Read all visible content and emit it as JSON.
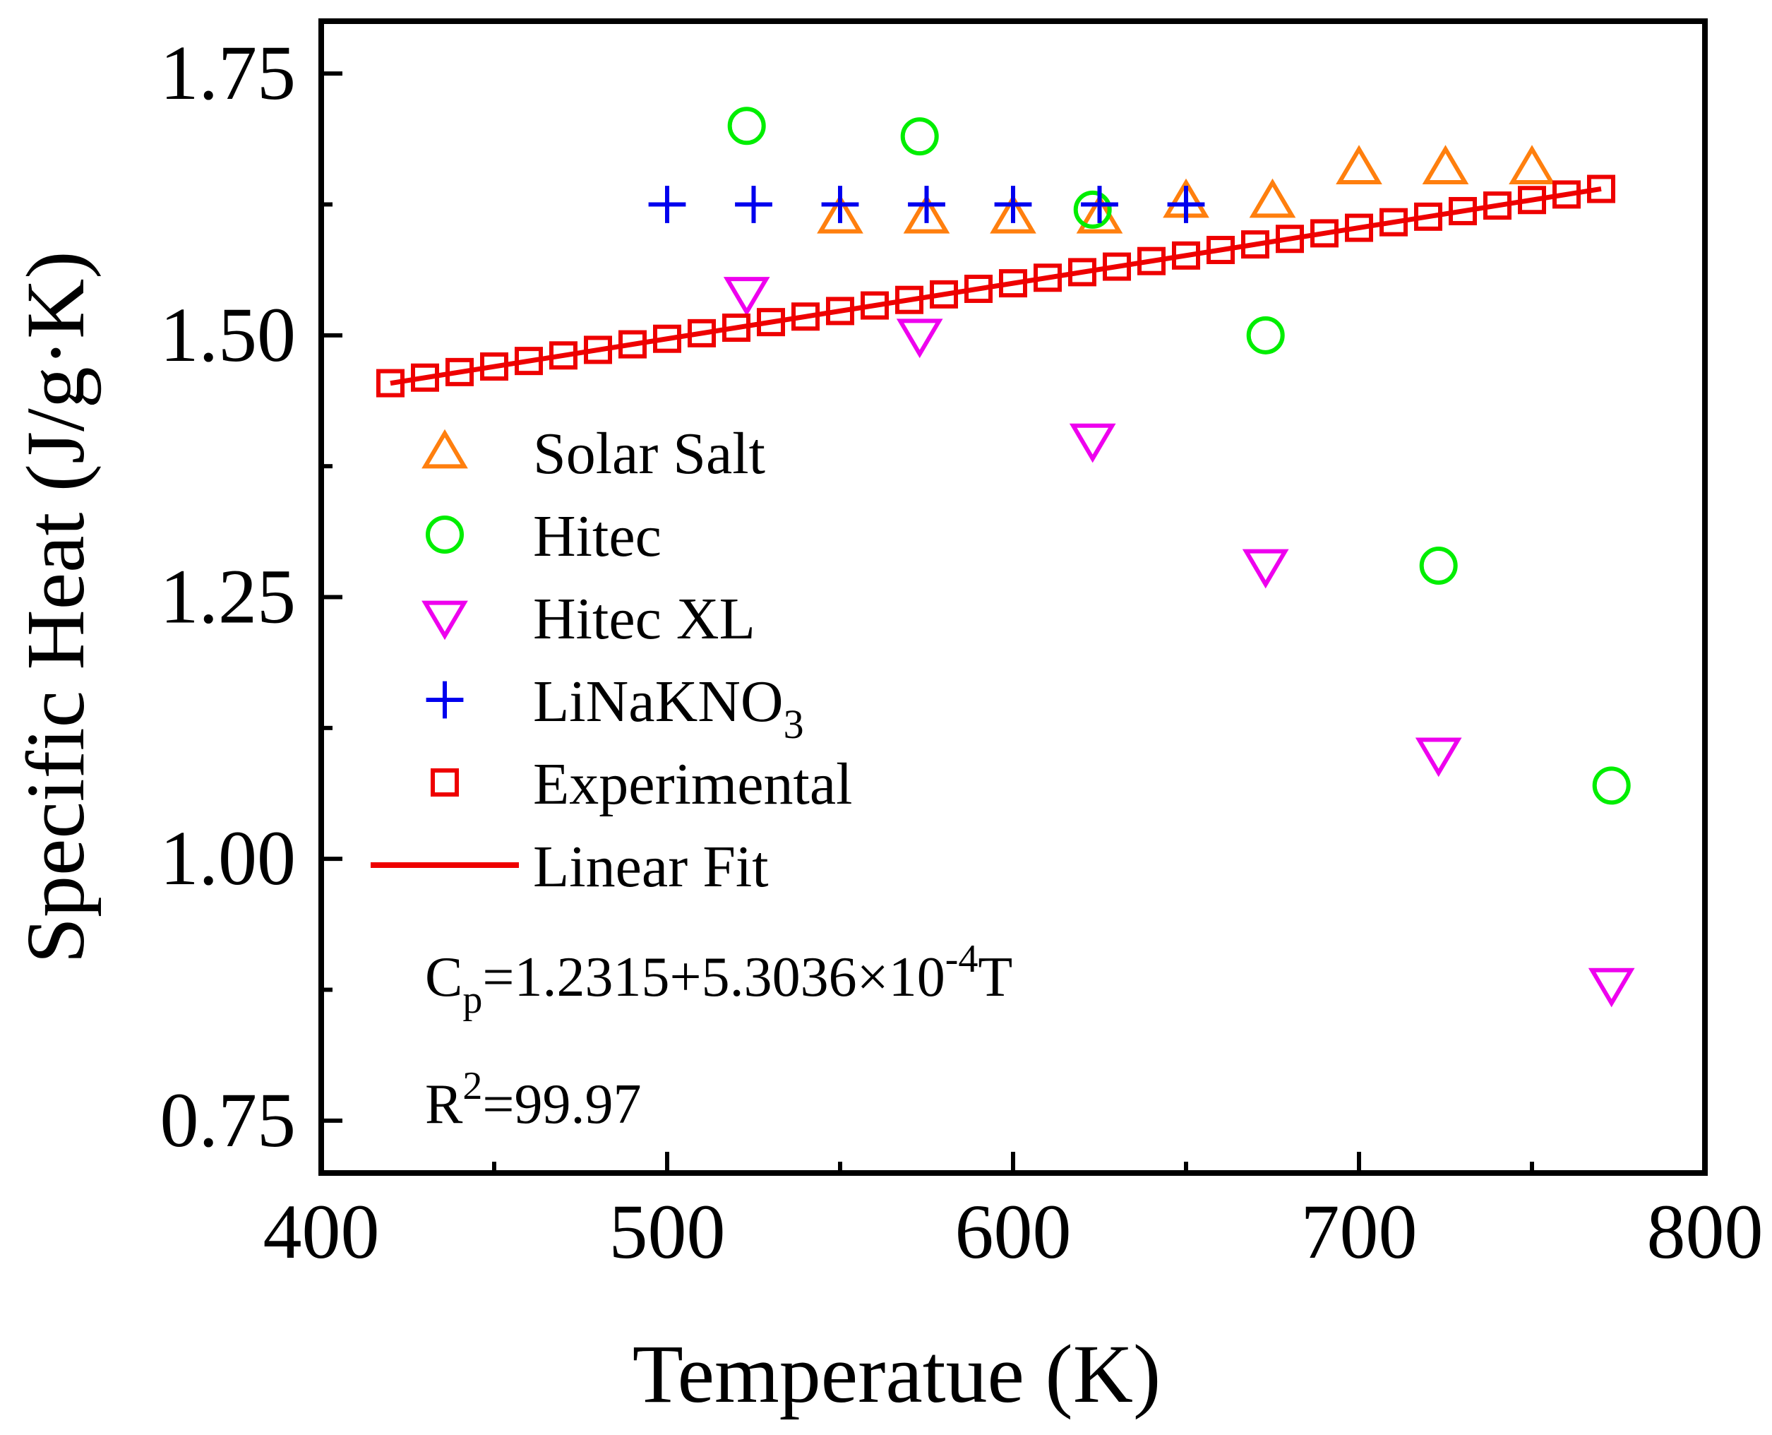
{
  "chart_data": {
    "type": "scatter",
    "title": "",
    "xlabel": "Temperatue (K)",
    "ylabel": "Specific Heat (J/g·K)",
    "xlim": [
      400,
      800
    ],
    "ylim": [
      0.7,
      1.8
    ],
    "x_ticks": [
      "400",
      "500",
      "600",
      "700",
      "800"
    ],
    "x_tick_values": [
      400,
      500,
      600,
      700,
      800
    ],
    "y_ticks": [
      "0.75",
      "1.00",
      "1.25",
      "1.50",
      "1.75"
    ],
    "y_tick_values": [
      0.75,
      1.0,
      1.25,
      1.5,
      1.75
    ],
    "legend_position": "middle-left",
    "series": [
      {
        "name": "Solar Salt",
        "marker": "triangle-up",
        "color": "#ff7f0e",
        "x": [
          550,
          575,
          600,
          625,
          650,
          675,
          700,
          725,
          750
        ],
        "y": [
          1.613,
          1.613,
          1.613,
          1.613,
          1.628,
          1.628,
          1.66,
          1.66,
          1.66
        ]
      },
      {
        "name": "Hitec",
        "marker": "circle",
        "color": "#00ee00",
        "x": [
          523,
          573,
          623,
          673,
          723,
          773
        ],
        "y": [
          1.7,
          1.69,
          1.62,
          1.5,
          1.28,
          1.07
        ]
      },
      {
        "name": "Hitec XL",
        "marker": "triangle-down",
        "color": "#ee00ee",
        "x": [
          523,
          573,
          623,
          673,
          723,
          773
        ],
        "y": [
          1.54,
          1.5,
          1.4,
          1.28,
          1.1,
          0.88
        ]
      },
      {
        "name": "LiNaKNO",
        "name_sub": "3",
        "marker": "plus",
        "color": "#0000ee",
        "x": [
          500,
          525,
          550,
          575,
          600,
          625,
          650
        ],
        "y": [
          1.625,
          1.625,
          1.625,
          1.625,
          1.625,
          1.625,
          1.625
        ]
      },
      {
        "name": "Experimental",
        "marker": "square",
        "color": "#ee0000",
        "x": [
          420,
          430,
          440,
          450,
          460,
          470,
          480,
          490,
          500,
          510,
          520,
          530,
          540,
          550,
          560,
          570,
          580,
          590,
          600,
          610,
          620,
          630,
          640,
          650,
          660,
          670,
          680,
          690,
          700,
          710,
          720,
          730,
          740,
          750,
          760,
          770
        ],
        "y": [
          1.4543,
          1.4596,
          1.4649,
          1.4702,
          1.4755,
          1.4808,
          1.4861,
          1.4914,
          1.4967,
          1.502,
          1.5073,
          1.5126,
          1.5179,
          1.5232,
          1.5285,
          1.5338,
          1.5391,
          1.5444,
          1.5497,
          1.555,
          1.5603,
          1.5656,
          1.5709,
          1.5762,
          1.5815,
          1.5868,
          1.5921,
          1.5974,
          1.6027,
          1.608,
          1.6133,
          1.6186,
          1.6239,
          1.6292,
          1.6345,
          1.6398
        ]
      },
      {
        "name": "Linear Fit",
        "marker": "line",
        "color": "#ee0000",
        "intercept": 1.2315,
        "slope": 0.00053036,
        "x_range": [
          420,
          770
        ]
      }
    ],
    "annotations": {
      "equation": {
        "c": "C",
        "c_sub": "p",
        "mid": "=1.2315+5.3036×10",
        "exp": "-4",
        "tail": "T"
      },
      "r2": {
        "r": "R",
        "exp": "2",
        "tail": "=99.97"
      }
    }
  }
}
